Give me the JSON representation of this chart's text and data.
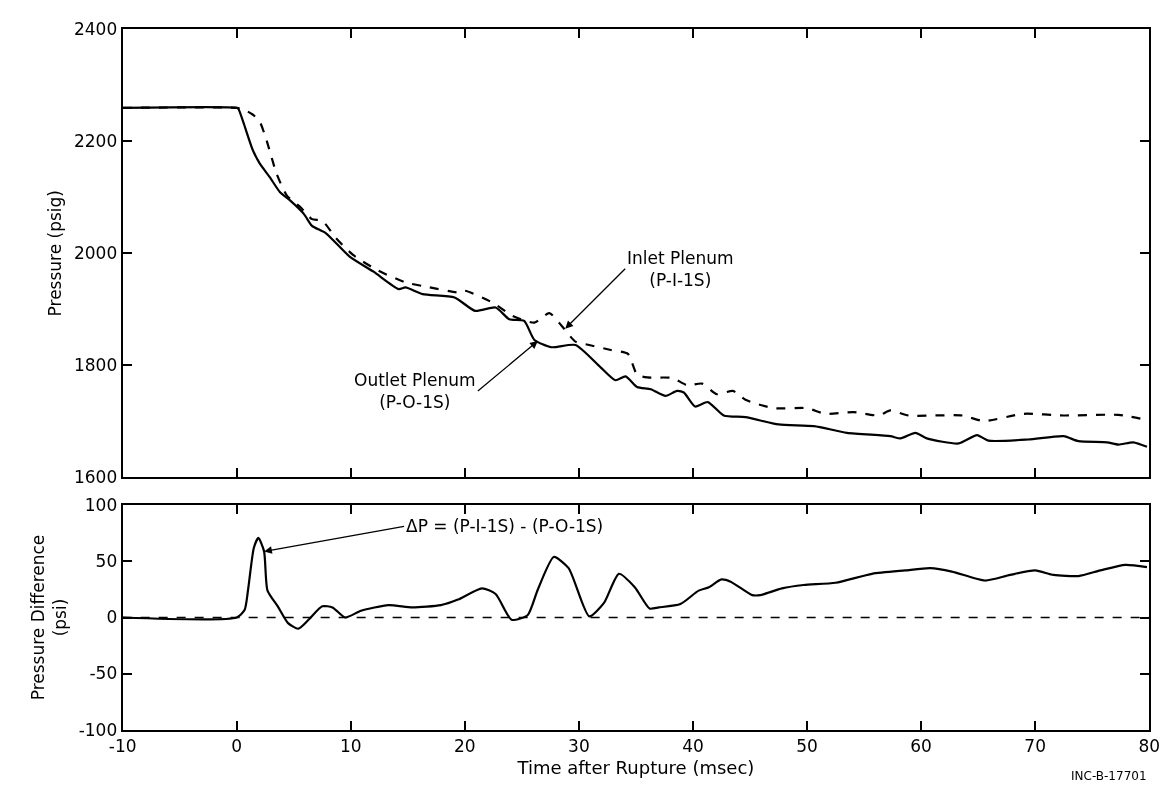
{
  "chart_data": [
    {
      "type": "line",
      "ylabel": "Pressure (psig)",
      "xlim": [
        -10,
        80
      ],
      "xticks": [
        -10,
        0,
        10,
        20,
        30,
        40,
        50,
        60,
        70,
        80
      ],
      "ylim": [
        1600,
        2400
      ],
      "yticks": [
        1600,
        1800,
        2000,
        2200,
        2400
      ],
      "tick_labels": "y",
      "series": [
        {
          "color": "#000000",
          "line_style": "dashed",
          "x": [
            -10,
            0,
            0.5,
            1.4,
            2.0,
            2.6,
            3.5,
            4.4,
            5.6,
            6.6,
            7.5,
            8.7,
            10.2,
            12.3,
            14.8,
            16.9,
            19.4,
            20.0,
            22.4,
            24.2,
            26.1,
            27.4,
            28.5,
            29.7,
            30.9,
            32.8,
            34.3,
            35.1,
            36.0,
            38.2,
            39.5,
            40.8,
            42.1,
            43.5,
            44.6,
            47.1,
            50.0,
            51.6,
            54.1,
            56.3,
            57.3,
            58.9,
            63.6,
            65.5,
            69.0,
            72.5,
            77.3,
            79.8
          ],
          "values": [
            2260,
            2260,
            2258,
            2248,
            2236,
            2203,
            2142,
            2103,
            2082,
            2061,
            2058,
            2027,
            1997,
            1970,
            1948,
            1939,
            1930,
            1933,
            1912,
            1888,
            1876,
            1893,
            1870,
            1842,
            1836,
            1827,
            1820,
            1783,
            1778,
            1777,
            1764,
            1767,
            1748,
            1754,
            1738,
            1723,
            1723,
            1713,
            1716,
            1710,
            1719,
            1710,
            1710,
            1700,
            1713,
            1710,
            1711,
            1702
          ]
        },
        {
          "color": "#000000",
          "line_style": "solid",
          "x": [
            -10,
            0,
            0.15,
            0.6,
            1.4,
            2.0,
            2.9,
            3.8,
            4.7,
            5.9,
            6.6,
            7.8,
            9.9,
            12.0,
            14.2,
            14.8,
            16.3,
            19.1,
            20.9,
            22.7,
            23.9,
            25.2,
            26.1,
            27.6,
            29.7,
            31.9,
            33.2,
            34.1,
            35.1,
            36.3,
            37.6,
            38.6,
            39.2,
            40.2,
            41.3,
            42.7,
            44.6,
            47.5,
            50.6,
            53.5,
            57.3,
            58.2,
            59.5,
            60.5,
            63.3,
            64.9,
            65.9,
            69.4,
            72.5,
            73.8,
            76.3,
            77.3,
            78.6,
            79.8
          ],
          "values": [
            2260,
            2260,
            2258,
            2233,
            2185,
            2161,
            2136,
            2109,
            2094,
            2070,
            2049,
            2036,
            1994,
            1967,
            1936,
            1939,
            1927,
            1921,
            1897,
            1903,
            1882,
            1879,
            1845,
            1832,
            1836,
            1796,
            1773,
            1780,
            1761,
            1757,
            1745,
            1754,
            1751,
            1726,
            1734,
            1710,
            1707,
            1694,
            1691,
            1679,
            1673,
            1669,
            1679,
            1669,
            1660,
            1675,
            1665,
            1667,
            1673,
            1664,
            1662,
            1658,
            1662,
            1654
          ]
        }
      ],
      "annotations": [
        {
          "text": "Inlet Plenum\n(P-I-1S)",
          "x": 28.8,
          "y": 1865
        },
        {
          "text": "Outlet Plenum\n(P-O-1S)",
          "x": 26.4,
          "y": 1843
        }
      ]
    },
    {
      "type": "line",
      "xlabel": "Time after Rupture (msec)",
      "ylabel": "Pressure Difference\n(psi)",
      "xlim": [
        -10,
        80
      ],
      "xticks": [
        -10,
        0,
        10,
        20,
        30,
        40,
        50,
        60,
        70,
        80
      ],
      "ylim": [
        -100,
        100
      ],
      "yticks": [
        -100,
        -50,
        0,
        50,
        100
      ],
      "ref_lines": [
        {
          "axis": "y",
          "value": 0,
          "color": "#000000",
          "line_style": "dashed"
        }
      ],
      "series": [
        {
          "color": "#000000",
          "line_style": "solid",
          "x": [
            -10,
            0,
            0.7,
            1.0,
            1.5,
            1.9,
            2.4,
            2.7,
            3.6,
            4.5,
            5.4,
            6.3,
            7.5,
            8.4,
            9.5,
            10.9,
            13.3,
            15.4,
            17.9,
            19.4,
            21.5,
            22.7,
            24.1,
            25.5,
            26.4,
            27.8,
            29.1,
            30.9,
            32.2,
            33.5,
            34.9,
            36.2,
            37.0,
            38.9,
            40.5,
            41.4,
            42.5,
            43.3,
            45.2,
            45.9,
            47.8,
            49.7,
            52.5,
            55.7,
            58.6,
            60.8,
            62.7,
            65.6,
            67.8,
            70.0,
            71.6,
            73.8,
            75.7,
            77.9,
            79.8
          ],
          "values": [
            0,
            0,
            7,
            25,
            62,
            71,
            59,
            24,
            10,
            -5,
            -10,
            -2,
            10,
            9,
            0,
            6,
            11,
            9,
            11,
            16,
            26,
            21,
            -2,
            2,
            25,
            54,
            44,
            1,
            13,
            39,
            27,
            8,
            9,
            12,
            24,
            27,
            34,
            32,
            20,
            20,
            26,
            29,
            31,
            39,
            42,
            44,
            41,
            33,
            38,
            42,
            38,
            37,
            42,
            47,
            45
          ]
        }
      ],
      "annotations": [
        {
          "text": "ΔP = (P-I-1S) - (P-O-1S)",
          "x": 2.4,
          "y": 59
        },
        "INC-B-17701"
      ]
    }
  ]
}
